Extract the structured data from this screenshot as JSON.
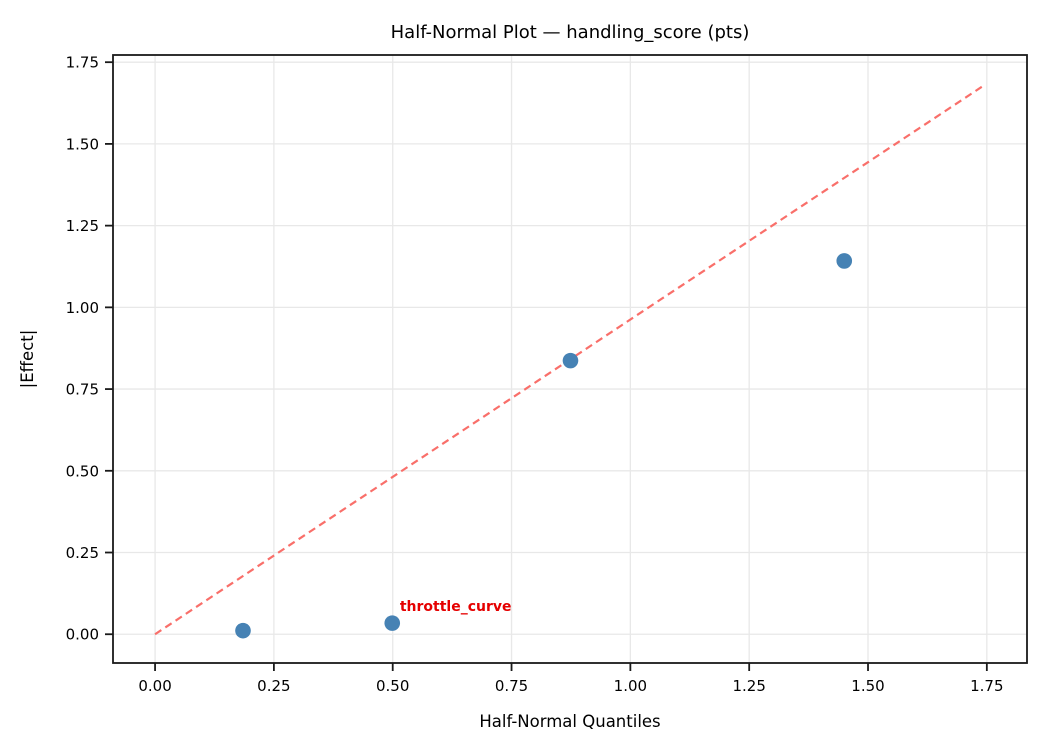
{
  "chart_data": {
    "type": "scatter",
    "title": "Half-Normal Plot — handling_score (pts)",
    "xlabel": "Half-Normal Quantiles",
    "ylabel": "|Effect|",
    "xlim": [
      -0.0885,
      1.8345
    ],
    "ylim": [
      -0.088,
      1.772
    ],
    "x_ticks": [
      0.0,
      0.25,
      0.5,
      0.75,
      1.0,
      1.25,
      1.5,
      1.75
    ],
    "x_tick_labels": [
      "0.00",
      "0.25",
      "0.50",
      "0.75",
      "1.00",
      "1.25",
      "1.50",
      "1.75"
    ],
    "y_ticks": [
      0.0,
      0.25,
      0.5,
      0.75,
      1.0,
      1.25,
      1.5,
      1.75
    ],
    "y_tick_labels": [
      "0.00",
      "0.25",
      "0.50",
      "0.75",
      "1.00",
      "1.25",
      "1.50",
      "1.75"
    ],
    "grid": true,
    "legend": "none",
    "series": [
      {
        "name": "absolute-effects",
        "type": "scatter",
        "marker": "circle",
        "marker_radius_px": 7.8,
        "color": "#4682B4",
        "x": [
          0.185,
          0.499,
          0.874,
          1.45
        ],
        "y": [
          0.011,
          0.034,
          0.837,
          1.142
        ]
      },
      {
        "name": "half-normal-reference-line",
        "type": "line",
        "style": "dashed",
        "color": "#f96f6a",
        "x": [
          0.0,
          1.746
        ],
        "y": [
          0.0,
          1.681
        ]
      }
    ],
    "annotations": [
      {
        "text": "throttle_curve",
        "x": 0.515,
        "y": 0.071,
        "color": "#e50000",
        "bold": true,
        "anchor": "start"
      }
    ]
  },
  "colors": {
    "background": "#ffffff",
    "grid": "#e8e8e8",
    "spine": "#1a1a1a",
    "point": "#4682B4",
    "reference_line": "#f96f6a",
    "annotation": "#e50000",
    "text": "#000000"
  }
}
